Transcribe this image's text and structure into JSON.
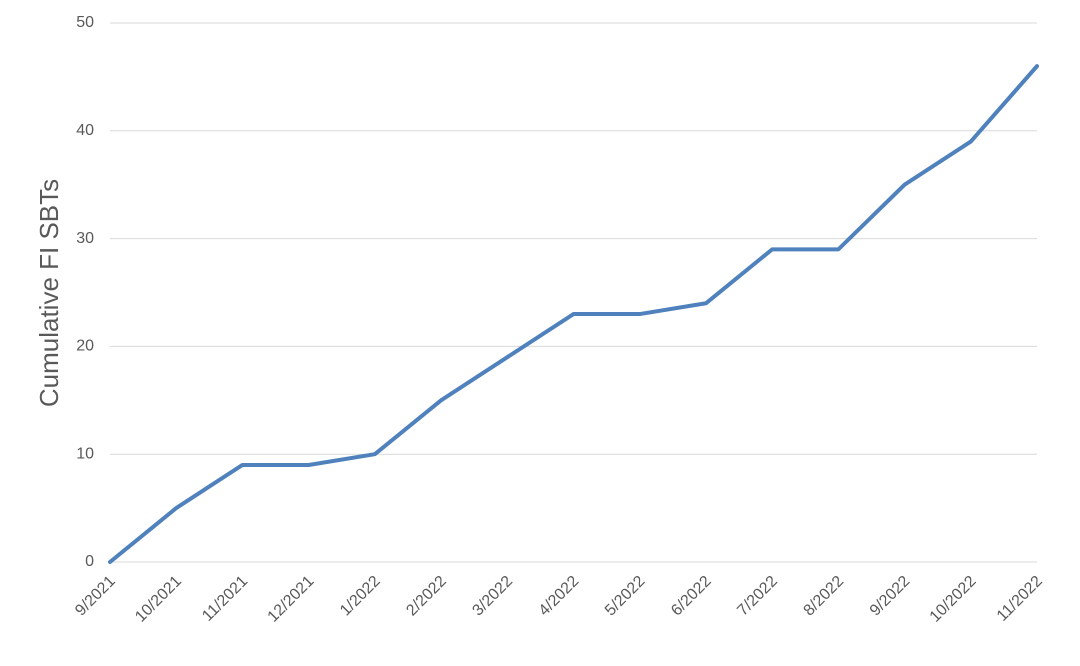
{
  "chart_data": {
    "type": "line",
    "y_label": "Cumulative FI SBTs",
    "categories": [
      "9/2021",
      "10/2021",
      "11/2021",
      "12/2021",
      "1/2022",
      "2/2022",
      "3/2022",
      "4/2022",
      "5/2022",
      "6/2022",
      "7/2022",
      "8/2022",
      "9/2022",
      "10/2022",
      "11/2022"
    ],
    "values": [
      0,
      5,
      9,
      9,
      10,
      15,
      19,
      23,
      23,
      24,
      29,
      29,
      35,
      39,
      46
    ],
    "color": "#4f81bd",
    "ylim": [
      0,
      50
    ],
    "yticks": [
      0,
      10,
      20,
      30,
      40,
      50
    ],
    "grid": true
  }
}
